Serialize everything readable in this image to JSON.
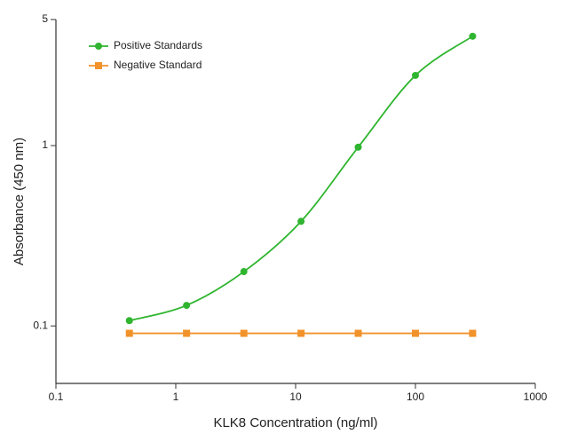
{
  "chart_data": {
    "type": "scatter",
    "x_label": "KLK8 Concentration (ng/ml)",
    "y_label": "Absorbance (450 nm)",
    "xscale": "log",
    "yscale": "log",
    "xlim": [
      0.1,
      1000
    ],
    "xticks": [
      0.1,
      1,
      10,
      100,
      1000
    ],
    "ylim": [
      0.048,
      5
    ],
    "yticks": [
      0.1,
      1,
      5
    ],
    "legend": "top-left",
    "series": [
      {
        "name": "Positive Standards",
        "color": "#2fb52f",
        "marker": "circle",
        "curve": "smooth",
        "x": [
          0.41,
          1.23,
          3.7,
          11.1,
          33.3,
          100,
          300
        ],
        "values": [
          0.107,
          0.13,
          0.2,
          0.38,
          0.98,
          2.45,
          4.04
        ]
      },
      {
        "name": "Negative Standard",
        "color": "#f2922a",
        "marker": "square",
        "curve": "straight",
        "x": [
          0.41,
          1.23,
          3.7,
          11.1,
          33.3,
          100,
          300
        ],
        "values": [
          0.091,
          0.091,
          0.091,
          0.091,
          0.091,
          0.091,
          0.091
        ]
      }
    ]
  }
}
